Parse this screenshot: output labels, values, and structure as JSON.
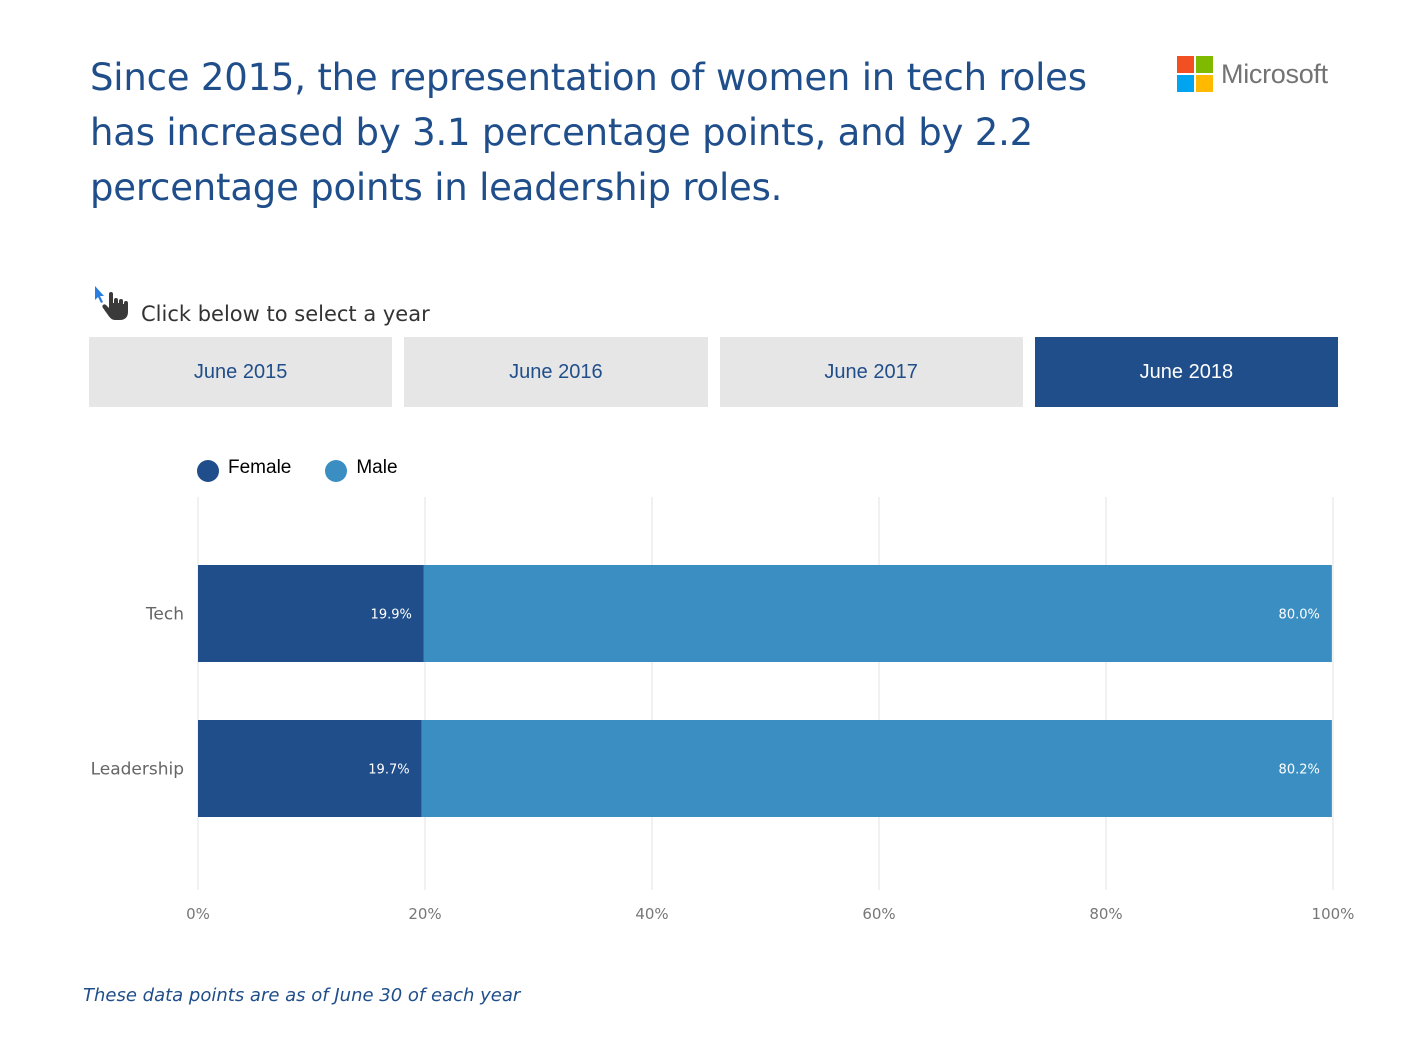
{
  "headline": "Since 2015, the representation of women in tech roles has increased by 3.1 percentage points, and by 2.2 percentage points in leadership roles.",
  "logo": {
    "text": "Microsoft",
    "colors": [
      "#f25022",
      "#7fba00",
      "#00a4ef",
      "#ffb900"
    ]
  },
  "hint": {
    "icon": "hand-pointer-icon",
    "text": "Click below to select a year"
  },
  "tabs": [
    {
      "label": "June 2015",
      "active": false
    },
    {
      "label": "June 2016",
      "active": false
    },
    {
      "label": "June 2017",
      "active": false
    },
    {
      "label": "June 2018",
      "active": true
    }
  ],
  "colors": {
    "female": "#1f4e8a",
    "male": "#3a8ec2",
    "headline": "#1f4e8a",
    "tab_bg": "#e6e6e6"
  },
  "chart_data": {
    "type": "bar",
    "orientation": "horizontal",
    "stacked": true,
    "categories": [
      "Tech",
      "Leadership"
    ],
    "series": [
      {
        "name": "Female",
        "values": [
          19.9,
          19.7
        ],
        "labels": [
          "19.9%",
          "19.7%"
        ]
      },
      {
        "name": "Male",
        "values": [
          80.0,
          80.2
        ],
        "labels": [
          "80.0%",
          "80.2%"
        ]
      }
    ],
    "xlim": [
      0,
      100
    ],
    "xticks": [
      "0%",
      "20%",
      "40%",
      "60%",
      "80%",
      "100%"
    ],
    "grid": true,
    "legend": {
      "position": "top-left",
      "entries": [
        "Female",
        "Male"
      ]
    }
  },
  "footnote": "These data points are as of June 30 of each year"
}
